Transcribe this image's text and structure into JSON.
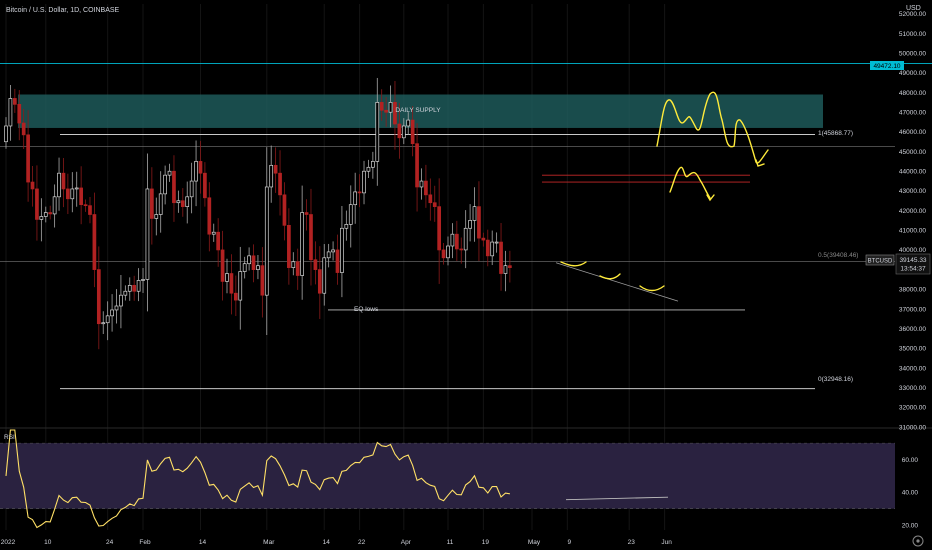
{
  "header": {
    "title": "Bitcoin / U.S. Dollar, 1D, COINBASE",
    "currency": "USD"
  },
  "colors": {
    "background": "#000000",
    "bull": "#d7d7d7",
    "bear": "#b22222",
    "wick": "#9a9a9a",
    "supply_zone": "#1f5f5f",
    "marker_line": "#00bcd4",
    "drawing": "#ffeb3b",
    "rsi_line": "#ffe066",
    "rsi_band": "#2a2240",
    "text": "#d1d4dc"
  },
  "chart_data": {
    "type": "candlestick",
    "symbol": "BTCUSD",
    "ylim": [
      31000,
      52500
    ],
    "y_ticks": [
      31000,
      32000,
      33000,
      34000,
      35000,
      36000,
      37000,
      38000,
      39000,
      40000,
      41000,
      42000,
      43000,
      44000,
      45000,
      46000,
      47000,
      48000,
      49000,
      50000,
      51000,
      52000
    ],
    "x_tick_labels": [
      {
        "day": 0,
        "label": "2022"
      },
      {
        "day": 9,
        "label": "10"
      },
      {
        "day": 23,
        "label": "24"
      },
      {
        "day": 31,
        "label": "Feb"
      },
      {
        "day": 44,
        "label": "14"
      },
      {
        "day": 59,
        "label": "Mar"
      },
      {
        "day": 72,
        "label": "14"
      },
      {
        "day": 80,
        "label": "22"
      },
      {
        "day": 90,
        "label": "Apr"
      },
      {
        "day": 100,
        "label": "11"
      },
      {
        "day": 108,
        "label": "19"
      },
      {
        "day": 119,
        "label": "May"
      },
      {
        "day": 127,
        "label": "9"
      },
      {
        "day": 141,
        "label": "23"
      },
      {
        "day": 149,
        "label": "Jun"
      }
    ],
    "closes": [
      46300,
      47700,
      47400,
      46450,
      45850,
      43450,
      43100,
      41550,
      41700,
      41900,
      41830,
      42700,
      43900,
      43100,
      42600,
      43100,
      43150,
      42300,
      42250,
      41800,
      39000,
      36250,
      36300,
      36650,
      36950,
      37150,
      37700,
      37900,
      38200,
      37900,
      38450,
      38500,
      43100,
      41600,
      41800,
      42850,
      43800,
      44000,
      42400,
      42500,
      42200,
      42700,
      43500,
      44500,
      43900,
      42650,
      40800,
      40900,
      40000,
      38400,
      38800,
      37800,
      37450,
      38900,
      39300,
      39700,
      39000,
      39200,
      37700,
      43200,
      44300,
      43900,
      42800,
      41250,
      39100,
      39400,
      38700,
      41900,
      41800,
      39500,
      39000,
      37800,
      39600,
      39900,
      40000,
      38850,
      41100,
      41300,
      42300,
      42950,
      42900,
      44000,
      44200,
      44500,
      47500,
      47100,
      47000,
      47500,
      46400,
      45700,
      46300,
      46600,
      45400,
      43200,
      43500,
      42800,
      42400,
      42200,
      40000,
      39600,
      40200,
      40800,
      40050,
      40000,
      41100,
      41500,
      42200,
      40600,
      40500,
      39700,
      40400,
      40400,
      38800,
      39200,
      39100
    ],
    "levels": [
      {
        "name": "supply_zone",
        "label": "DAILY SUPPLY",
        "from": 46200,
        "to": 47900
      },
      {
        "name": "fib_1",
        "label": "1(45868.77)",
        "value": 45868.77
      },
      {
        "name": "fib_0_5",
        "label": "0.5(39408.46)",
        "value": 39408.46
      },
      {
        "name": "fib_0",
        "label": "0(32948.16)",
        "value": 32948.16
      },
      {
        "name": "eq_lows",
        "label": "EQ lows",
        "value": 36950
      },
      {
        "name": "resistance_a",
        "value": 43800
      },
      {
        "name": "resistance_b",
        "value": 43450
      },
      {
        "name": "marker",
        "value": 49472.1
      }
    ],
    "price_labels": {
      "marker": "49472.10",
      "symbol": "BTCUSD",
      "last": "39145.33",
      "countdown": "13:54:37"
    },
    "rsi": {
      "label": "RSI",
      "ylim": [
        17,
        78
      ],
      "ticks": [
        20,
        40,
        60
      ],
      "band": [
        30,
        70
      ]
    }
  }
}
